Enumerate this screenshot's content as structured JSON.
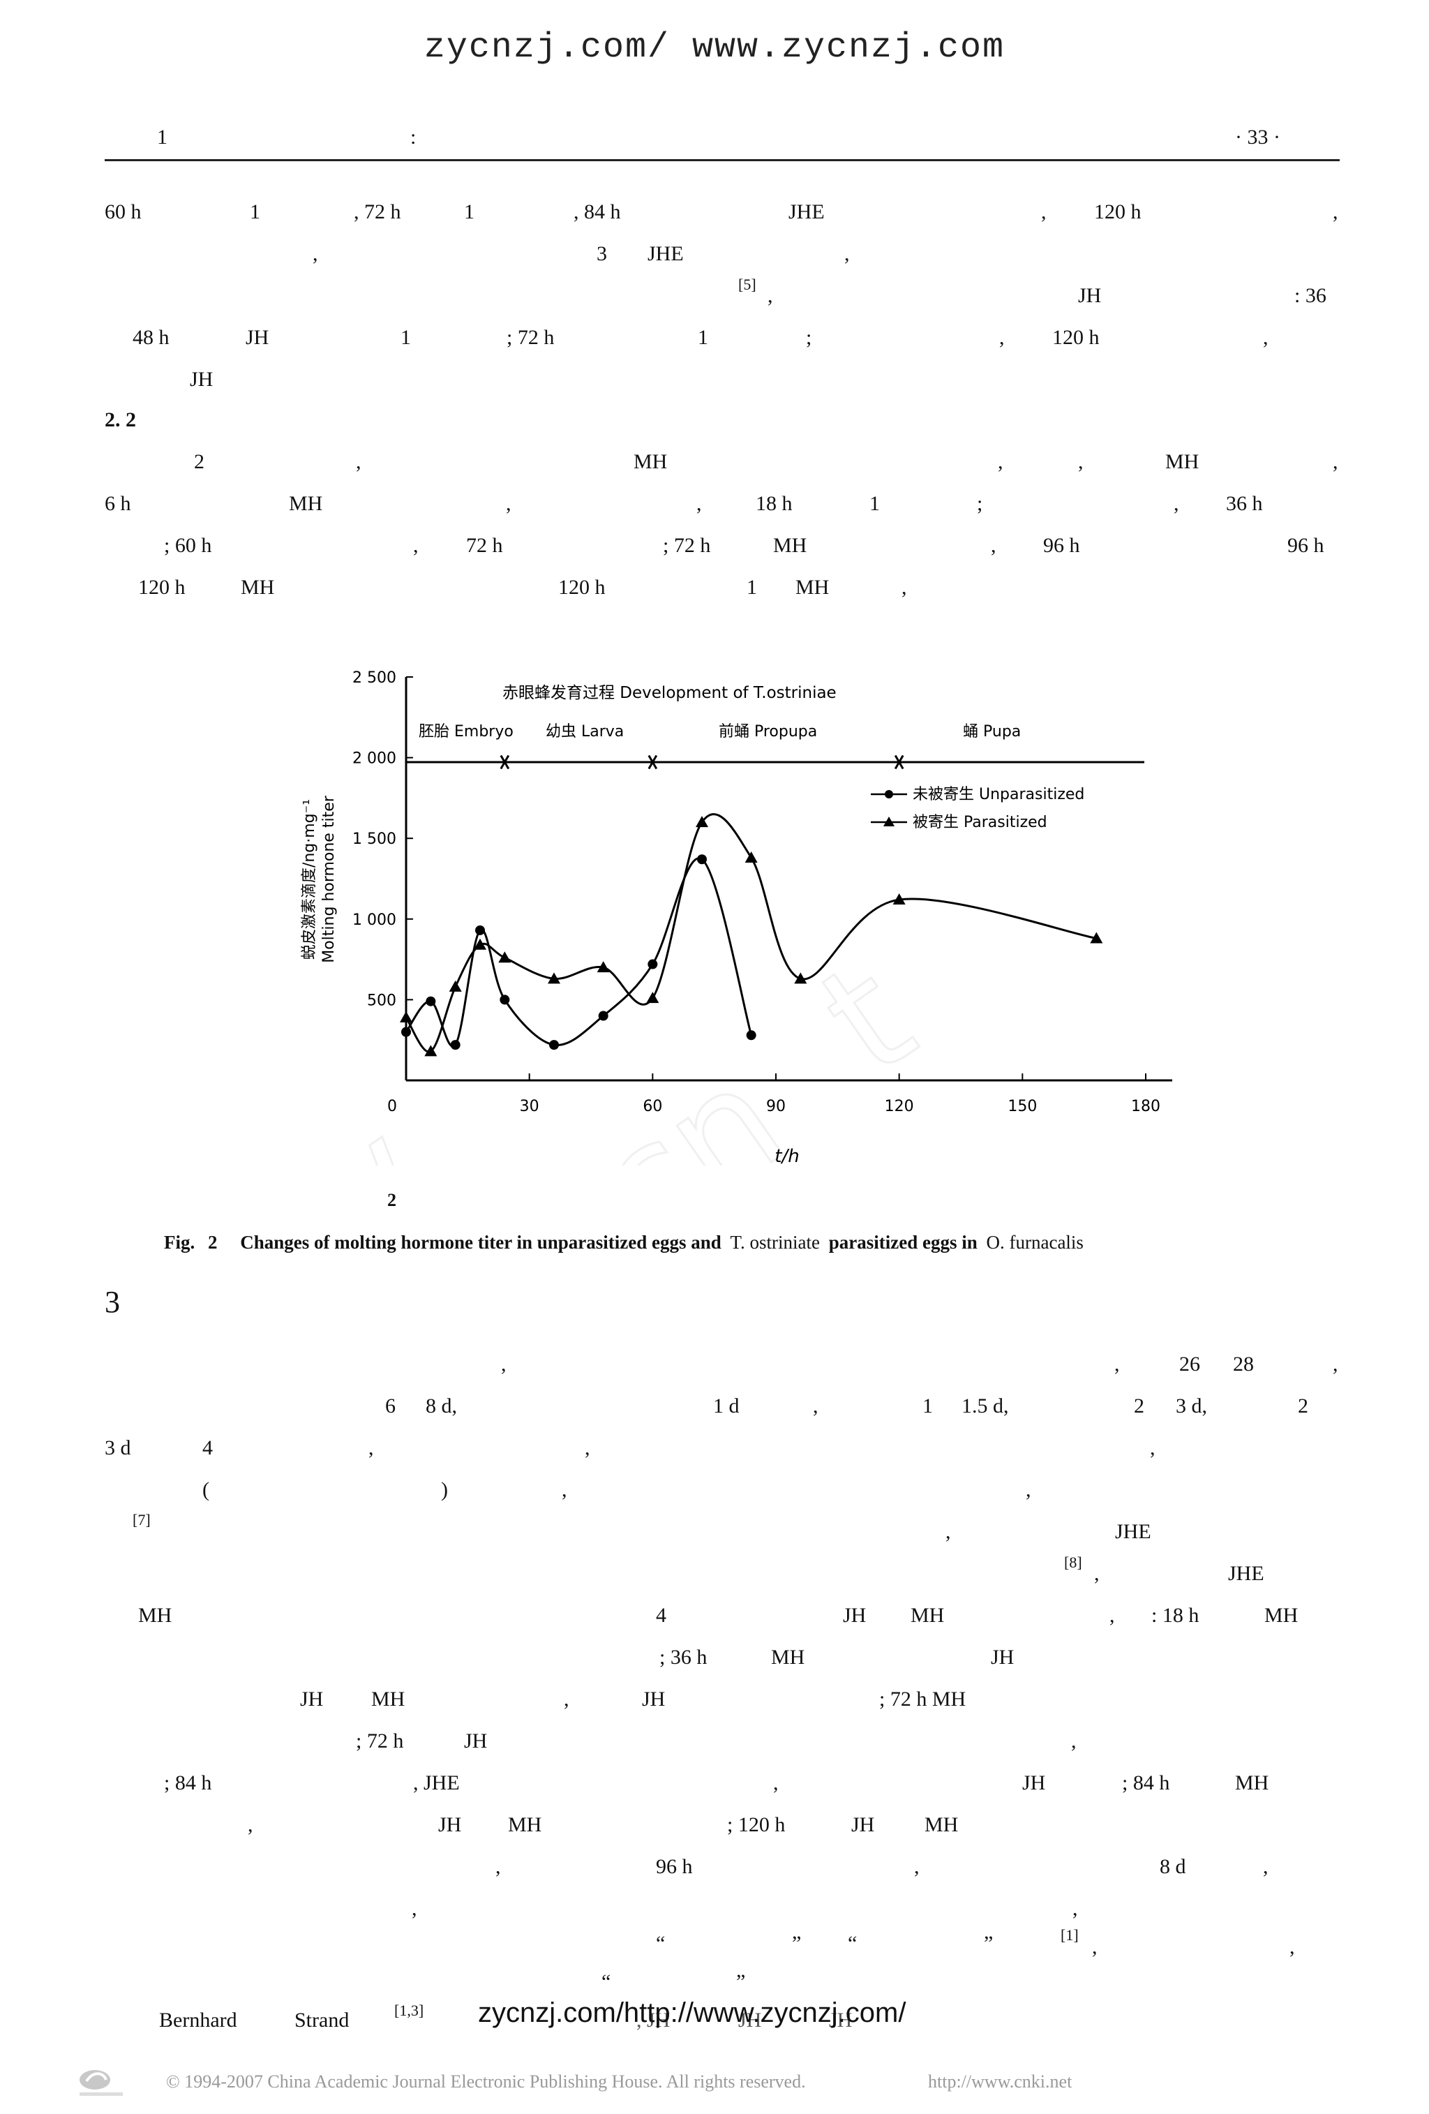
{
  "watermark_top": "zycnzj.com/ www.zycnzj.com",
  "watermark_bottom": "zycnzj.com/http://www.zycnzj.com/",
  "header": {
    "left_num": "1",
    "colon": ":",
    "page": "· 33 ·"
  },
  "para1": {
    "l1": [
      "60 h",
      "1",
      ", 72 h",
      "1",
      ", 84 h",
      "JHE",
      ",",
      "120 h",
      ","
    ],
    "l2": [
      ",",
      "3",
      "JHE",
      ","
    ],
    "l3": [
      "[5]",
      ",",
      "JH",
      ": 36"
    ],
    "l4": [
      "48 h",
      "JH",
      "1",
      "; 72 h",
      "1",
      ";",
      ",",
      "120 h",
      ","
    ],
    "l5": [
      "JH"
    ]
  },
  "section22": "2. 2",
  "para2": {
    "l1": [
      "2",
      ",",
      "MH",
      ",",
      ",",
      "MH",
      ","
    ],
    "l2": [
      "6 h",
      "MH",
      ",",
      ",",
      "18 h",
      "1",
      ";",
      ",",
      "36 h"
    ],
    "l3": [
      "; 60 h",
      ",",
      "72 h",
      "; 72 h",
      "MH",
      ",",
      "96 h",
      "96 h"
    ],
    "l4": [
      "120 h",
      "MH",
      "120 h",
      "1",
      "MH",
      ","
    ]
  },
  "chart_data": {
    "type": "line",
    "title": "赤眼蜂发育过程 Development of T.ostriniae",
    "stages": [
      "胚胎 Embryo",
      "幼虫 Larva",
      "前蛹 Propupa",
      "蛹 Pupa"
    ],
    "stage_boundaries_h": [
      24,
      60,
      120
    ],
    "xlabel": "t/h",
    "ylabel": [
      "蜕皮激素滴度/ng·mg⁻¹",
      "Molting hormone titer"
    ],
    "xlim": [
      0,
      180
    ],
    "ylim": [
      0,
      2500
    ],
    "xticks": [
      0,
      30,
      60,
      90,
      120,
      150,
      180
    ],
    "yticks": [
      500,
      1000,
      1500,
      2000,
      2500
    ],
    "ytick_labels": [
      "500",
      "1 000",
      "1 500",
      "2 000",
      "2 500"
    ],
    "x_origin_label": "0",
    "legend_position": "right",
    "series": [
      {
        "name": "未被寄生 Unparasitized",
        "marker": "circle",
        "points": [
          [
            0,
            300
          ],
          [
            6,
            490
          ],
          [
            12,
            220
          ],
          [
            18,
            930
          ],
          [
            24,
            500
          ],
          [
            36,
            220
          ],
          [
            48,
            400
          ],
          [
            60,
            720
          ],
          [
            72,
            1370
          ],
          [
            84,
            280
          ]
        ]
      },
      {
        "name": "被寄生 Parasitized",
        "marker": "triangle",
        "points": [
          [
            0,
            390
          ],
          [
            6,
            180
          ],
          [
            12,
            580
          ],
          [
            18,
            840
          ],
          [
            24,
            760
          ],
          [
            36,
            630
          ],
          [
            48,
            700
          ],
          [
            60,
            510
          ],
          [
            72,
            1600
          ],
          [
            84,
            1380
          ],
          [
            96,
            630
          ],
          [
            120,
            1120
          ],
          [
            168,
            880
          ]
        ]
      }
    ]
  },
  "fig_num": "2",
  "fig_caption": {
    "fig": "Fig.",
    "num": "2",
    "b1": "Changes of molting hormone titer in unparasitized eggs and",
    "i1": "T. ostriniate",
    "b2": "parasitized eggs in",
    "i2": "O. furnacalis"
  },
  "section3": "3",
  "para3": {
    "l1": [
      ",",
      ",",
      "26",
      "28",
      ","
    ],
    "l2": [
      "6",
      "8 d,",
      "1 d",
      ",",
      "1",
      "1.5 d,",
      "2",
      "3 d,",
      "2"
    ],
    "l3": [
      "3 d",
      "4",
      ",",
      ",",
      ","
    ],
    "l4": [
      "(",
      ")",
      ",",
      ","
    ],
    "l5": [
      "[7]"
    ],
    "l6": [
      ",",
      "JHE"
    ],
    "l7": [
      "[8]",
      ",",
      "JHE"
    ],
    "l8": [
      "MH",
      "4",
      "JH",
      "MH",
      ",",
      ": 18 h",
      "MH"
    ],
    "l9": [
      "; 36 h",
      "MH",
      "JH"
    ],
    "l10": [
      "JH",
      "MH",
      ",",
      "JH",
      "; 72 h MH"
    ],
    "l11": [
      "; 72 h",
      "JH",
      ","
    ],
    "l12": [
      "; 84 h",
      ", JHE",
      ",",
      "JH",
      "; 84 h",
      "MH"
    ],
    "l13": [
      ",",
      "JH",
      "MH",
      "; 120 h",
      "JH",
      "MH"
    ],
    "l14": [
      ",",
      "96 h",
      ",",
      "8 d",
      ","
    ],
    "l15": [
      ",",
      ","
    ],
    "l16": [
      "“",
      "”",
      "“",
      "”",
      "[1]",
      ",",
      ","
    ],
    "l17": [
      "“",
      "”"
    ],
    "l18": [
      "Bernhard",
      "Strand",
      "[1,3]",
      ", JH",
      "JH",
      "JH"
    ]
  },
  "footer": {
    "copyright": "© 1994-2007 China Academic Journal Electronic Publishing House. All rights reserved.",
    "url": "http://www.cnki.net"
  }
}
